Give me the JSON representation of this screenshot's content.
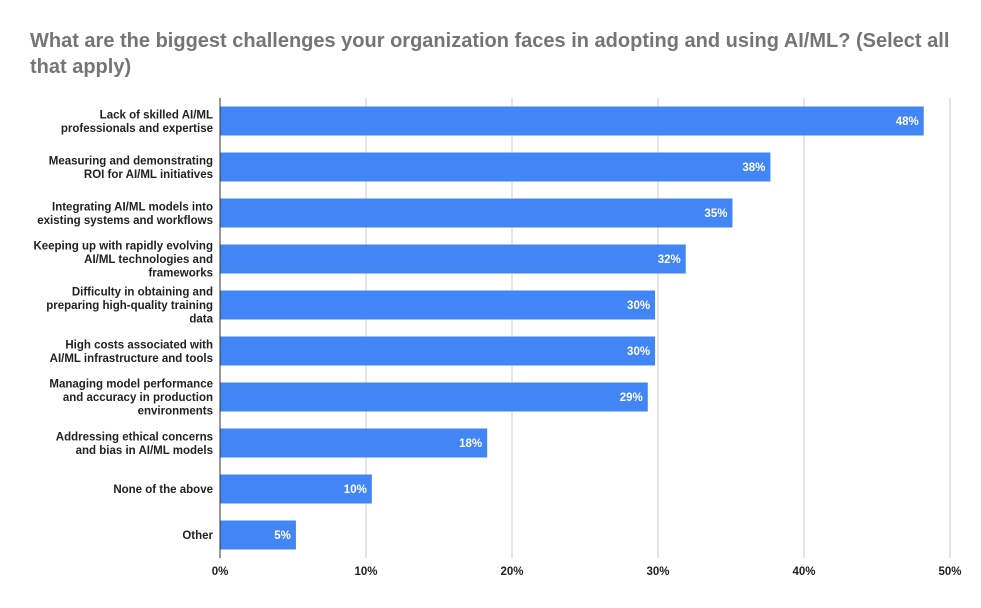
{
  "chart_data": {
    "type": "bar",
    "orientation": "horizontal",
    "title": "What are the biggest challenges your organization faces in adopting and using AI/ML? (Select all that apply)",
    "categories": [
      [
        "Lack of skilled AI/ML",
        "professionals and expertise"
      ],
      [
        "Measuring and demonstrating",
        "ROI for AI/ML initiatives"
      ],
      [
        "Integrating AI/ML models into",
        "existing systems and workflows"
      ],
      [
        "Keeping up with rapidly evolving",
        "AI/ML technologies and",
        "frameworks"
      ],
      [
        "Difficulty in obtaining and",
        "preparing high-quality training",
        "data"
      ],
      [
        "High costs associated with",
        "AI/ML infrastructure and tools"
      ],
      [
        "Managing model performance",
        "and accuracy in production",
        "environments"
      ],
      [
        "Addressing ethical concerns",
        "and bias in AI/ML models"
      ],
      [
        "None of the above"
      ],
      [
        "Other"
      ]
    ],
    "values": [
      48.2,
      37.7,
      35.1,
      31.9,
      29.8,
      29.8,
      29.3,
      18.3,
      10.4,
      5.2
    ],
    "data_labels": [
      "48%",
      "38%",
      "35%",
      "32%",
      "30%",
      "30%",
      "29%",
      "18%",
      "10%",
      "5%"
    ],
    "xlim": [
      0,
      50
    ],
    "x_ticks": [
      "0%",
      "10%",
      "20%",
      "30%",
      "40%",
      "50%"
    ],
    "x_tick_values": [
      0,
      10,
      20,
      30,
      40,
      50
    ],
    "grid": true,
    "legend": "none",
    "bar_color": "#4285f4",
    "grid_color": "#cccccc",
    "axis_color": "#333333"
  }
}
